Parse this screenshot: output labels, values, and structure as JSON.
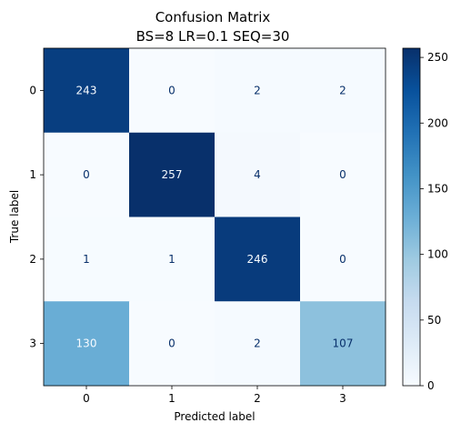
{
  "chart_data": {
    "type": "heatmap",
    "title": "Confusion Matrix",
    "subtitle": "BS=8 LR=0.1 SEQ=30",
    "xlabel": "Predicted label",
    "ylabel": "True label",
    "x_categories": [
      "0",
      "1",
      "2",
      "3"
    ],
    "y_categories": [
      "0",
      "1",
      "2",
      "3"
    ],
    "matrix": [
      [
        243,
        0,
        2,
        2
      ],
      [
        0,
        257,
        4,
        0
      ],
      [
        1,
        1,
        246,
        0
      ],
      [
        130,
        0,
        2,
        107
      ]
    ],
    "colormap": "Blues",
    "vmin": 0,
    "vmax": 257,
    "colorbar_ticks": [
      "0",
      "50",
      "100",
      "150",
      "200",
      "250"
    ],
    "colorbar_tick_values": [
      0,
      50,
      100,
      150,
      200,
      250
    ],
    "colors": {
      "low": "#f7fbff",
      "high": "#08306b",
      "text_dark": "#08306b",
      "text_light": "#f7fbff"
    }
  }
}
